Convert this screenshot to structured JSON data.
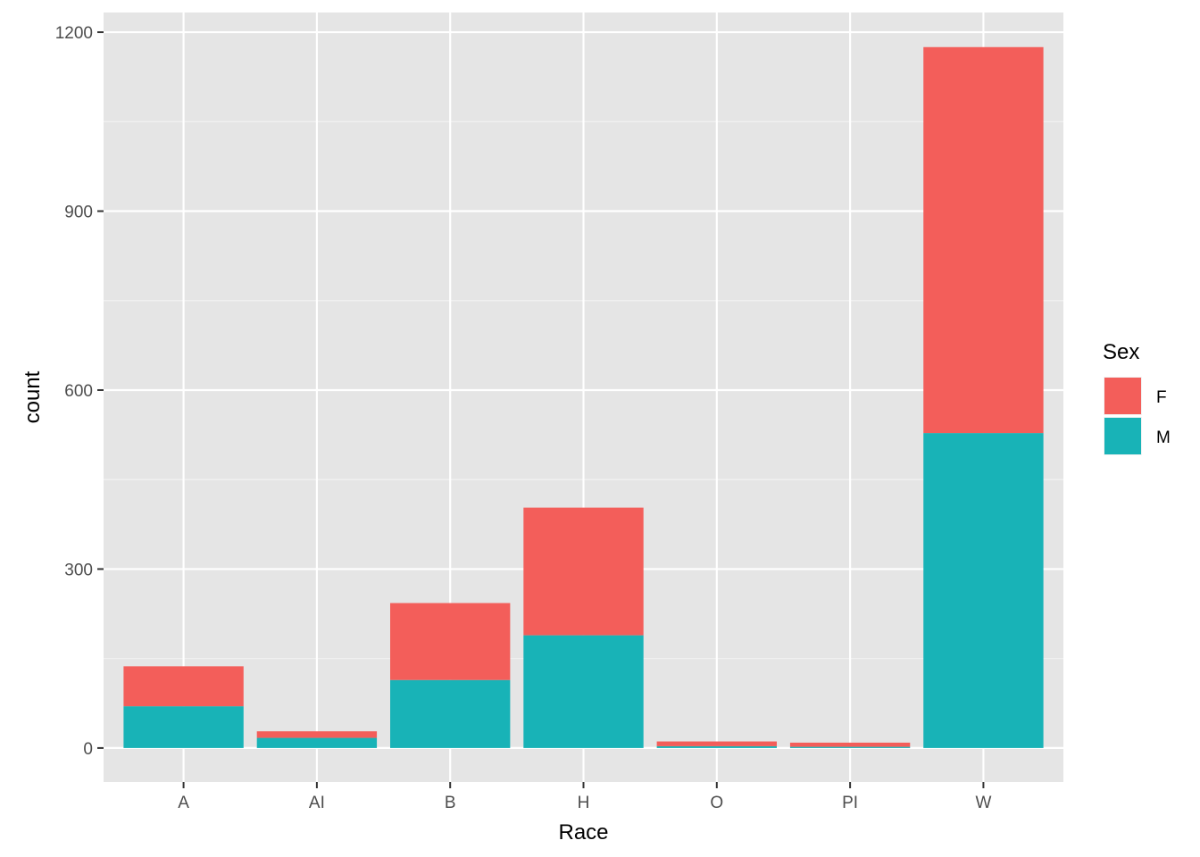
{
  "chart_data": {
    "type": "bar",
    "stacked": true,
    "categories": [
      "A",
      "AI",
      "B",
      "H",
      "O",
      "PI",
      "W"
    ],
    "series": [
      {
        "name": "F",
        "color": "#f35e5a",
        "values": [
          67,
          11,
          129,
          214,
          8,
          7,
          647
        ]
      },
      {
        "name": "M",
        "color": "#18b3b7",
        "values": [
          70,
          17,
          114,
          189,
          3,
          2,
          528
        ]
      }
    ],
    "xlabel": "Race",
    "ylabel": "count",
    "ylim": [
      -57,
      1233
    ],
    "yticks": [
      0,
      300,
      600,
      900,
      1200
    ],
    "grid": true,
    "legend": {
      "title": "Sex",
      "position": "right"
    },
    "panel_color": "#e5e5e5"
  }
}
